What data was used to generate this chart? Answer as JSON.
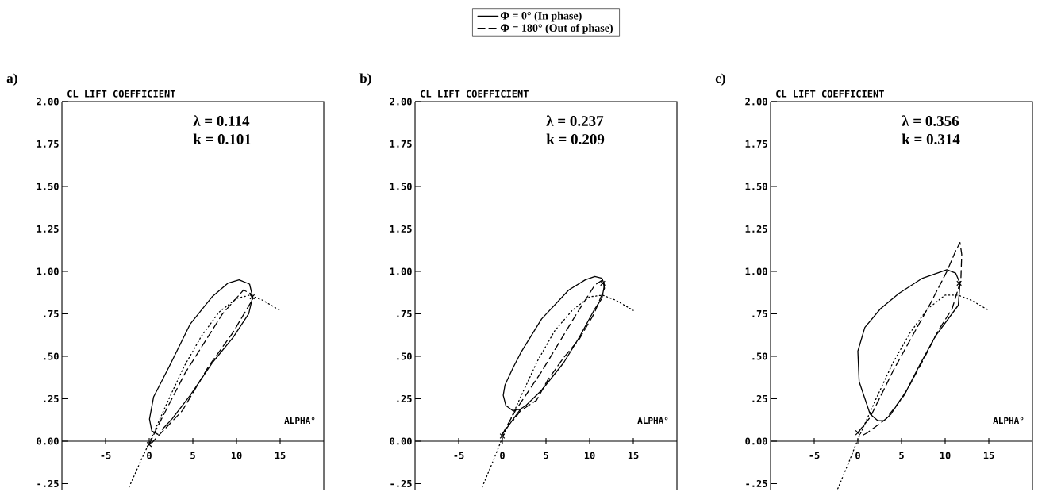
{
  "chart_data": [
    {
      "type": "line",
      "title": "a)",
      "ylabel": "CL LIFT COEFFICIENT",
      "xlabel": "ALPHA°",
      "annotations": [
        "λ = 0.114",
        "k = 0.101"
      ],
      "xlim": [
        -10,
        20
      ],
      "ylim": [
        -0.29,
        2.0
      ],
      "xticks": [
        -5,
        0,
        5,
        10,
        15
      ],
      "yticks": [
        {
          "value": -0.25,
          "label": "-.25"
        },
        {
          "value": 0,
          "label": "0.00"
        },
        {
          "value": 0.25,
          "label": ".25"
        },
        {
          "value": 0.5,
          "label": ".50"
        },
        {
          "value": 0.75,
          "label": ".75"
        },
        {
          "value": 1,
          "label": "1.00"
        },
        {
          "value": 1.25,
          "label": "1.25"
        },
        {
          "value": 1.5,
          "label": "1.50"
        },
        {
          "value": 1.75,
          "label": "1.75"
        },
        {
          "value": 2,
          "label": "2.00"
        }
      ],
      "series": [
        {
          "color": "#000000",
          "line_style": "solid",
          "x": [
            1.0,
            0.3,
            0.03,
            0.5,
            2.3,
            4.7,
            7.2,
            9.0,
            10.3,
            11.5,
            11.85,
            11.4,
            9.6,
            7.2,
            4.7,
            2.6,
            1.5
          ],
          "values": [
            0.04,
            0.06,
            0.13,
            0.26,
            0.44,
            0.69,
            0.85,
            0.93,
            0.95,
            0.925,
            0.85,
            0.75,
            0.61,
            0.46,
            0.27,
            0.13,
            0.07
          ]
        },
        {
          "color": "#000000",
          "line_style": "dashed",
          "x": [
            0,
            0.8,
            4.1,
            8.4,
            10.8,
            11.6,
            11.9,
            9.6,
            6.8,
            3.8,
            1.2,
            0.3
          ],
          "values": [
            -0.02,
            0.07,
            0.4,
            0.75,
            0.89,
            0.87,
            0.84,
            0.64,
            0.44,
            0.18,
            0.04,
            -0.01
          ]
        },
        {
          "color": "#000000",
          "line_style": "dotted",
          "x": [
            -2.3,
            -1,
            0,
            2,
            4,
            6,
            8,
            10,
            11.5,
            13,
            15
          ],
          "values": [
            -0.27,
            -0.12,
            -0.01,
            0.22,
            0.44,
            0.62,
            0.76,
            0.84,
            0.86,
            0.83,
            0.77
          ]
        },
        {
          "type": "scatter",
          "marker": "cross",
          "color": "#000000",
          "x": [
            0,
            11.8
          ],
          "values": [
            -0.02,
            0.85
          ]
        }
      ]
    },
    {
      "type": "line",
      "title": "b)",
      "ylabel": "CL LIFT COEFFICIENT",
      "xlabel": "ALPHA°",
      "annotations": [
        "λ = 0.237",
        "k = 0.209"
      ],
      "xlim": [
        -10,
        20
      ],
      "ylim": [
        -0.29,
        2.0
      ],
      "xticks": [
        -5,
        0,
        5,
        10,
        15
      ],
      "legend": "top",
      "yticks": [
        {
          "value": -0.25,
          "label": "-.25"
        },
        {
          "value": 0,
          "label": "0.00"
        },
        {
          "value": 0.25,
          "label": ".25"
        },
        {
          "value": 0.5,
          "label": ".50"
        },
        {
          "value": 0.75,
          "label": ".75"
        },
        {
          "value": 1,
          "label": "1.00"
        },
        {
          "value": 1.25,
          "label": "1.25"
        },
        {
          "value": 1.5,
          "label": "1.50"
        },
        {
          "value": 1.75,
          "label": "1.75"
        },
        {
          "value": 2,
          "label": "2.00"
        }
      ],
      "series": [
        {
          "name": "Φ = 0° (In phase)",
          "color": "#000000",
          "line_style": "solid",
          "x": [
            0,
            1.1,
            2.1,
            1.2,
            0.4,
            0.1,
            0.3,
            1.2,
            2.1,
            4.5,
            7.6,
            9.5,
            10.6,
            11.4,
            11.7,
            11.4,
            10.6,
            8.8,
            7.0,
            4.5,
            2.7,
            2.1
          ],
          "values": [
            0.04,
            0.12,
            0.19,
            0.18,
            0.21,
            0.27,
            0.33,
            0.43,
            0.52,
            0.72,
            0.89,
            0.95,
            0.97,
            0.96,
            0.92,
            0.84,
            0.78,
            0.61,
            0.46,
            0.3,
            0.21,
            0.19
          ]
        },
        {
          "name": "Φ = 180° (Out of phase)",
          "color": "#000000",
          "line_style": "dashed",
          "x": [
            0,
            1.5,
            4.5,
            8.5,
            10.6,
            11.5,
            11.7,
            10.5,
            8.8,
            7.0,
            5.2,
            3.9,
            2.1,
            1.2
          ],
          "values": [
            0.04,
            0.18,
            0.41,
            0.75,
            0.92,
            0.95,
            0.9,
            0.75,
            0.6,
            0.49,
            0.36,
            0.24,
            0.18,
            0.12
          ]
        },
        {
          "color": "#000000",
          "line_style": "dotted",
          "x": [
            -2.3,
            -1,
            0,
            2,
            4,
            6,
            8,
            10,
            11.5,
            13,
            15
          ],
          "values": [
            -0.27,
            -0.11,
            0.02,
            0.25,
            0.47,
            0.65,
            0.77,
            0.85,
            0.86,
            0.83,
            0.77
          ]
        },
        {
          "type": "scatter",
          "marker": "cross",
          "color": "#000000",
          "x": [
            0,
            11.5
          ],
          "values": [
            0.03,
            0.93
          ]
        }
      ]
    },
    {
      "type": "line",
      "title": "c)",
      "ylabel": "CL LIFT COEFFICIENT",
      "xlabel": "ALPHA°",
      "annotations": [
        "λ = 0.356",
        "k = 0.314"
      ],
      "xlim": [
        -10,
        20
      ],
      "ylim": [
        -0.29,
        2.0
      ],
      "xticks": [
        -5,
        0,
        5,
        10,
        15
      ],
      "yticks": [
        {
          "value": -0.25,
          "label": "-.25"
        },
        {
          "value": 0,
          "label": "0.00"
        },
        {
          "value": 0.25,
          "label": ".25"
        },
        {
          "value": 0.5,
          "label": ".50"
        },
        {
          "value": 0.75,
          "label": ".75"
        },
        {
          "value": 1,
          "label": "1.00"
        },
        {
          "value": 1.25,
          "label": "1.25"
        },
        {
          "value": 1.5,
          "label": "1.50"
        },
        {
          "value": 1.75,
          "label": "1.75"
        },
        {
          "value": 2,
          "label": "2.00"
        }
      ],
      "series": [
        {
          "color": "#000000",
          "line_style": "solid",
          "x": [
            2.9,
            2.3,
            1.4,
            0.15,
            0,
            0.8,
            2.6,
            4.7,
            7.4,
            10.2,
            11.2,
            11.7,
            11.5,
            8.9,
            7.1,
            5.6,
            3.8,
            3.2
          ],
          "values": [
            0.12,
            0.12,
            0.16,
            0.35,
            0.53,
            0.67,
            0.78,
            0.87,
            0.96,
            1.01,
            0.99,
            0.93,
            0.8,
            0.62,
            0.45,
            0.3,
            0.16,
            0.13
          ]
        },
        {
          "color": "#000000",
          "line_style": "dashed",
          "x": [
            0,
            1.4,
            4.1,
            8.3,
            10.2,
            11.2,
            11.7,
            11.9,
            11.8,
            10.8,
            9.2,
            7.4,
            5.3,
            3.2,
            1.1,
            0.4
          ],
          "values": [
            0.05,
            0.14,
            0.42,
            0.81,
            1.0,
            1.12,
            1.17,
            1.1,
            0.95,
            0.78,
            0.65,
            0.47,
            0.27,
            0.13,
            0.05,
            0.03
          ]
        },
        {
          "color": "#000000",
          "line_style": "dotted",
          "x": [
            -2.3,
            -1,
            0,
            2,
            4,
            6,
            8,
            10,
            11.5,
            13,
            15
          ],
          "values": [
            -0.28,
            -0.12,
            0.01,
            0.24,
            0.46,
            0.64,
            0.78,
            0.86,
            0.86,
            0.83,
            0.77
          ]
        },
        {
          "type": "scatter",
          "marker": "cross",
          "color": "#000000",
          "x": [
            0,
            11.6
          ],
          "values": [
            0.05,
            0.93
          ]
        }
      ]
    }
  ]
}
